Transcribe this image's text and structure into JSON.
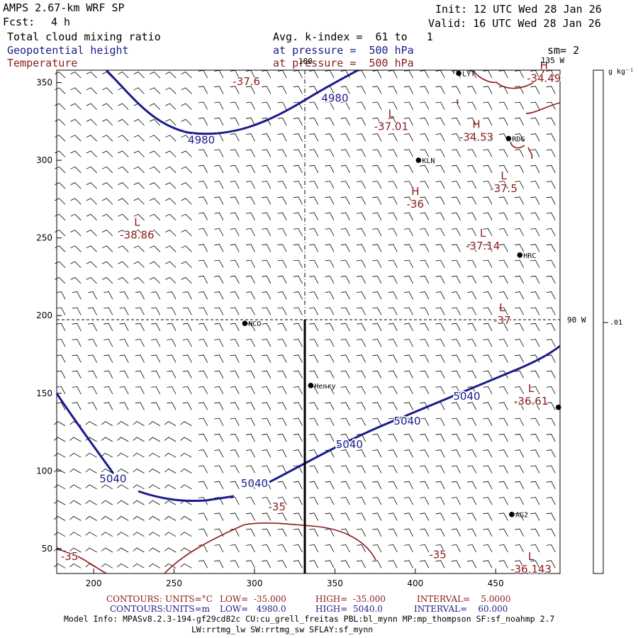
{
  "header": {
    "model": "AMPS 2.67-km WRF SP",
    "fcst_label": "Fcst:",
    "fcst_value": "4 h",
    "init": "Init: 12 UTC Wed 28 Jan 26",
    "valid": "Valid: 16 UTC Wed 28 Jan 26",
    "field1": "Total cloud mixing ratio",
    "field2": "Geopotential height",
    "field3": "Temperature",
    "avg": "Avg. k-index =  61 to   1",
    "pressure1": "at pressure =  500 hPa",
    "pressure2": "at pressure =  500 hPa",
    "sm": "sm= 2"
  },
  "colors": {
    "height": "#1a1a8c",
    "temperature": "#8b1a1a",
    "wind": "#000000"
  },
  "map": {
    "x_ticks": [
      "200",
      "250",
      "300",
      "350",
      "400",
      "450"
    ],
    "y_ticks": [
      "50",
      "100",
      "150",
      "200",
      "250",
      "300",
      "350"
    ],
    "meridian_180": "180",
    "meridian_135": "135 W",
    "meridian_90": "90 W",
    "colorbar_unit": "g kg⁻¹",
    "colorbar_value": ".01",
    "transect_label": "Henry",
    "stations": [
      {
        "name": "LYT",
        "x": 427,
        "y": 356
      },
      {
        "name": "RDG",
        "x": 458,
        "y": 314
      },
      {
        "name": "KLN",
        "x": 402,
        "y": 300
      },
      {
        "name": "HRC",
        "x": 465,
        "y": 239
      },
      {
        "name": "NCO",
        "x": 294,
        "y": 195
      },
      {
        "name": "Henry",
        "x": 335,
        "y": 155
      },
      {
        "name": "AG2",
        "x": 460,
        "y": 72
      },
      {
        "name": "",
        "x": 489,
        "y": 141
      }
    ],
    "height_labels": [
      {
        "text": "4980",
        "x": 350,
        "y": 340
      },
      {
        "text": "4980",
        "x": 267,
        "y": 313
      },
      {
        "text": "5040",
        "x": 432,
        "y": 148
      },
      {
        "text": "5040",
        "x": 395,
        "y": 132
      },
      {
        "text": "5040",
        "x": 359,
        "y": 117
      },
      {
        "text": "5040",
        "x": 212,
        "y": 95
      },
      {
        "text": "5040",
        "x": 300,
        "y": 92
      }
    ],
    "temp_centers": [
      {
        "mark": "",
        "value": "-37.6",
        "x": 295,
        "y": 354
      },
      {
        "mark": "L",
        "value": "-37.01",
        "x": 385,
        "y": 325
      },
      {
        "mark": "H",
        "value": "-34.49",
        "x": 480,
        "y": 356
      },
      {
        "mark": "H",
        "value": "-34.53",
        "x": 438,
        "y": 318
      },
      {
        "mark": "L",
        "value": "-37.5",
        "x": 455,
        "y": 285
      },
      {
        "mark": "H",
        "value": "-36",
        "x": 400,
        "y": 275
      },
      {
        "mark": "L",
        "value": "-38.86",
        "x": 227,
        "y": 255
      },
      {
        "mark": "L",
        "value": "-37.14",
        "x": 442,
        "y": 248
      },
      {
        "mark": "L",
        "value": "-37",
        "x": 454,
        "y": 200
      },
      {
        "mark": "L",
        "value": "-36.61",
        "x": 472,
        "y": 148
      },
      {
        "mark": "L",
        "value": "-36.143",
        "x": 472,
        "y": 40
      }
    ],
    "temp_labels": [
      {
        "text": "-35",
        "x": 314,
        "y": 77
      },
      {
        "text": "-35",
        "x": 185,
        "y": 45
      },
      {
        "text": "-35",
        "x": 414,
        "y": 46
      }
    ]
  },
  "footer": {
    "contours1_label": "CONTOURS:",
    "contours1_units": "UNITS=°C",
    "contours1_low": "LOW=  -35.000",
    "contours1_high": "HIGH=  -35.000",
    "contours1_interval": "INTERVAL=    5.0000",
    "contours2_label": "CONTOURS:",
    "contours2_units": "UNITS=m",
    "contours2_low": "LOW=   4980.0",
    "contours2_high": "HIGH=  5040.0",
    "contours2_interval": "INTERVAL=    60.000",
    "model_info": "Model Info: MPASv8.2.3-194-gf29cd82c CU:cu_grell_freitas PBL:bl_mynn MP:mp_thompson SF:sf_noahmp 2.7",
    "model_info2": "LW:rrtmg_lw SW:rrtmg_sw SFLAY:sf_mynn"
  }
}
